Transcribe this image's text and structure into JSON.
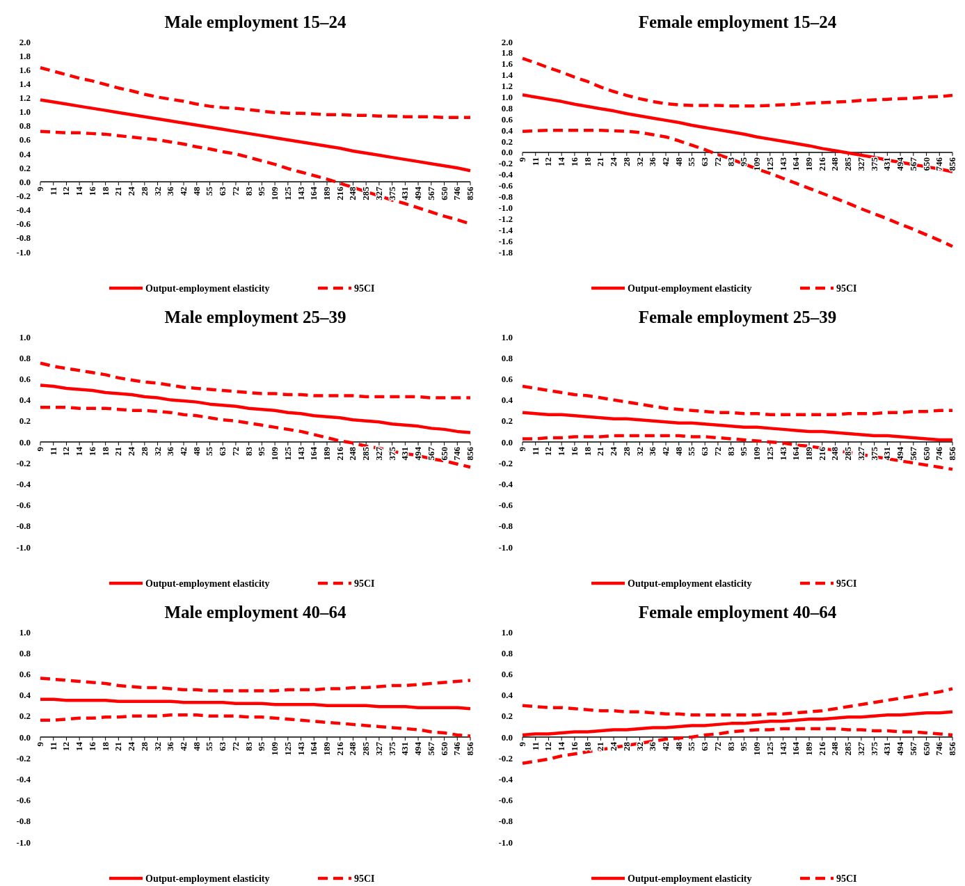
{
  "chart_data": [
    {
      "type": "line",
      "title": "Male employment 15–24",
      "legend": "bottom",
      "categories": [
        "9",
        "11",
        "12",
        "14",
        "16",
        "18",
        "21",
        "24",
        "28",
        "32",
        "36",
        "42",
        "48",
        "55",
        "63",
        "72",
        "83",
        "95",
        "109",
        "125",
        "143",
        "164",
        "189",
        "216",
        "248",
        "285",
        "327",
        "375",
        "431",
        "494",
        "567",
        "650",
        "746",
        "856"
      ],
      "ylim": [
        -1.0,
        2.0
      ],
      "yticks": [
        {
          "value": -1.0,
          "label": "-1.0"
        },
        {
          "value": -0.8,
          "label": "-0.8"
        },
        {
          "value": -0.6,
          "label": "-0.6"
        },
        {
          "value": -0.4,
          "label": "-0.4"
        },
        {
          "value": -0.2,
          "label": "-0.2"
        },
        {
          "value": 0,
          "label": "0.0"
        },
        {
          "value": 0.2,
          "label": "0.2"
        },
        {
          "value": 0.4,
          "label": "0.4"
        },
        {
          "value": 0.6,
          "label": "0.6"
        },
        {
          "value": 0.8,
          "label": "0.8"
        },
        {
          "value": 1.0,
          "label": "1.0"
        },
        {
          "value": 1.2,
          "label": "1.2"
        },
        {
          "value": 1.4,
          "label": "1.4"
        },
        {
          "value": 1.6,
          "label": "1.6"
        },
        {
          "value": 1.8,
          "label": "1.8"
        },
        {
          "value": 2.0,
          "label": "2.0"
        }
      ],
      "series": [
        {
          "name": "Output-employment elasticity",
          "color": "#ff0000",
          "line_style": "solid",
          "values": [
            1.17,
            1.14,
            1.11,
            1.08,
            1.05,
            1.02,
            0.99,
            0.96,
            0.93,
            0.9,
            0.87,
            0.84,
            0.81,
            0.78,
            0.75,
            0.72,
            0.69,
            0.66,
            0.63,
            0.6,
            0.57,
            0.54,
            0.51,
            0.48,
            0.44,
            0.41,
            0.38,
            0.35,
            0.32,
            0.29,
            0.26,
            0.23,
            0.2,
            0.16
          ]
        },
        {
          "name": "95CI",
          "color": "#ff0000",
          "line_style": "dashed",
          "values": [
            1.63,
            1.58,
            1.53,
            1.48,
            1.44,
            1.39,
            1.34,
            1.3,
            1.25,
            1.21,
            1.18,
            1.15,
            1.11,
            1.08,
            1.06,
            1.05,
            1.03,
            1.01,
            0.99,
            0.98,
            0.98,
            0.97,
            0.96,
            0.96,
            0.95,
            0.95,
            0.94,
            0.94,
            0.93,
            0.93,
            0.93,
            0.92,
            0.92,
            0.92
          ]
        },
        {
          "color": "#ff0000",
          "line_style": "dashed",
          "values": [
            0.72,
            0.71,
            0.7,
            0.7,
            0.69,
            0.68,
            0.66,
            0.64,
            0.62,
            0.6,
            0.57,
            0.54,
            0.5,
            0.47,
            0.43,
            0.4,
            0.35,
            0.3,
            0.25,
            0.19,
            0.14,
            0.09,
            0.04,
            -0.02,
            -0.08,
            -0.14,
            -0.2,
            -0.26,
            -0.31,
            -0.37,
            -0.43,
            -0.49,
            -0.54,
            -0.6
          ]
        }
      ]
    },
    {
      "type": "line",
      "title": "Female employment 15–24",
      "legend": "bottom",
      "categories": [
        "9",
        "11",
        "12",
        "14",
        "16",
        "18",
        "21",
        "24",
        "28",
        "32",
        "36",
        "42",
        "48",
        "55",
        "63",
        "72",
        "83",
        "95",
        "109",
        "125",
        "143",
        "164",
        "189",
        "216",
        "248",
        "285",
        "327",
        "375",
        "431",
        "494",
        "567",
        "650",
        "746",
        "856"
      ],
      "ylim": [
        -1.8,
        2.0
      ],
      "yticks": [
        {
          "value": -1.8,
          "label": "-1.8"
        },
        {
          "value": -1.6,
          "label": "-1.6"
        },
        {
          "value": -1.4,
          "label": "-1.4"
        },
        {
          "value": -1.2,
          "label": "-1.2"
        },
        {
          "value": -1.0,
          "label": "-1.0"
        },
        {
          "value": -0.8,
          "label": "-0.8"
        },
        {
          "value": -0.6,
          "label": "-0.6"
        },
        {
          "value": -0.4,
          "label": "-0.4"
        },
        {
          "value": -0.2,
          "label": "-0.2"
        },
        {
          "value": 0,
          "label": "0.0"
        },
        {
          "value": 0.2,
          "label": "0.2"
        },
        {
          "value": 0.4,
          "label": "0.4"
        },
        {
          "value": 0.6,
          "label": "0.6"
        },
        {
          "value": 0.8,
          "label": "0.8"
        },
        {
          "value": 1.0,
          "label": "1.0"
        },
        {
          "value": 1.2,
          "label": "1.2"
        },
        {
          "value": 1.4,
          "label": "1.4"
        },
        {
          "value": 1.6,
          "label": "1.6"
        },
        {
          "value": 1.8,
          "label": "1.8"
        },
        {
          "value": 2.0,
          "label": "2.0"
        }
      ],
      "series": [
        {
          "name": "Output-employment elasticity",
          "color": "#ff0000",
          "line_style": "solid",
          "values": [
            1.04,
            1.0,
            0.96,
            0.92,
            0.87,
            0.83,
            0.79,
            0.75,
            0.7,
            0.66,
            0.62,
            0.58,
            0.54,
            0.49,
            0.45,
            0.41,
            0.37,
            0.33,
            0.28,
            0.24,
            0.2,
            0.16,
            0.12,
            0.07,
            0.03,
            -0.01,
            -0.05,
            -0.09,
            -0.14,
            -0.18,
            -0.22,
            -0.26,
            -0.3,
            -0.35
          ]
        },
        {
          "name": "95CI",
          "color": "#ff0000",
          "line_style": "dashed",
          "values": [
            1.7,
            1.62,
            1.53,
            1.45,
            1.36,
            1.28,
            1.18,
            1.1,
            1.03,
            0.97,
            0.92,
            0.88,
            0.86,
            0.85,
            0.85,
            0.85,
            0.84,
            0.84,
            0.84,
            0.85,
            0.86,
            0.87,
            0.89,
            0.9,
            0.91,
            0.92,
            0.94,
            0.95,
            0.96,
            0.97,
            0.98,
            1.0,
            1.01,
            1.03
          ]
        },
        {
          "color": "#ff0000",
          "line_style": "dashed",
          "values": [
            0.38,
            0.39,
            0.4,
            0.4,
            0.4,
            0.4,
            0.4,
            0.39,
            0.38,
            0.36,
            0.32,
            0.28,
            0.21,
            0.13,
            0.05,
            -0.04,
            -0.12,
            -0.21,
            -0.3,
            -0.38,
            -0.47,
            -0.56,
            -0.65,
            -0.74,
            -0.83,
            -0.92,
            -1.02,
            -1.11,
            -1.2,
            -1.3,
            -1.39,
            -1.49,
            -1.59,
            -1.7
          ]
        }
      ]
    },
    {
      "type": "line",
      "title": "Male employment 25–39",
      "legend": "bottom",
      "categories": [
        "9",
        "11",
        "12",
        "14",
        "16",
        "18",
        "21",
        "24",
        "28",
        "32",
        "36",
        "42",
        "48",
        "55",
        "63",
        "72",
        "83",
        "95",
        "109",
        "125",
        "143",
        "164",
        "189",
        "216",
        "248",
        "285",
        "327",
        "375",
        "431",
        "494",
        "567",
        "650",
        "746",
        "856"
      ],
      "ylim": [
        -1.0,
        1.0
      ],
      "yticks": [
        {
          "value": -1.0,
          "label": "-1.0"
        },
        {
          "value": -0.8,
          "label": "-0.8"
        },
        {
          "value": -0.6,
          "label": "-0.6"
        },
        {
          "value": -0.4,
          "label": "-0.4"
        },
        {
          "value": -0.2,
          "label": "-0.2"
        },
        {
          "value": 0,
          "label": "0.0"
        },
        {
          "value": 0.2,
          "label": "0.2"
        },
        {
          "value": 0.4,
          "label": "0.4"
        },
        {
          "value": 0.6,
          "label": "0.6"
        },
        {
          "value": 0.8,
          "label": "0.8"
        },
        {
          "value": 1.0,
          "label": "1.0"
        }
      ],
      "series": [
        {
          "name": "Output-employment elasticity",
          "color": "#ff0000",
          "line_style": "solid",
          "values": [
            0.54,
            0.53,
            0.51,
            0.5,
            0.49,
            0.47,
            0.46,
            0.45,
            0.43,
            0.42,
            0.4,
            0.39,
            0.38,
            0.36,
            0.35,
            0.34,
            0.32,
            0.31,
            0.3,
            0.28,
            0.27,
            0.25,
            0.24,
            0.23,
            0.21,
            0.2,
            0.19,
            0.17,
            0.16,
            0.15,
            0.13,
            0.12,
            0.1,
            0.09
          ]
        },
        {
          "name": "95CI",
          "color": "#ff0000",
          "line_style": "dashed",
          "values": [
            0.75,
            0.72,
            0.7,
            0.68,
            0.66,
            0.64,
            0.61,
            0.59,
            0.57,
            0.56,
            0.54,
            0.52,
            0.51,
            0.5,
            0.49,
            0.48,
            0.47,
            0.46,
            0.46,
            0.45,
            0.45,
            0.44,
            0.44,
            0.44,
            0.44,
            0.43,
            0.43,
            0.43,
            0.43,
            0.43,
            0.42,
            0.42,
            0.42,
            0.42
          ]
        },
        {
          "color": "#ff0000",
          "line_style": "dashed",
          "values": [
            0.33,
            0.33,
            0.33,
            0.32,
            0.32,
            0.32,
            0.31,
            0.3,
            0.3,
            0.29,
            0.28,
            0.26,
            0.25,
            0.23,
            0.21,
            0.2,
            0.18,
            0.16,
            0.14,
            0.12,
            0.1,
            0.07,
            0.04,
            0.01,
            -0.01,
            -0.04,
            -0.06,
            -0.09,
            -0.11,
            -0.13,
            -0.16,
            -0.18,
            -0.21,
            -0.24
          ]
        }
      ]
    },
    {
      "type": "line",
      "title": "Female employment 25–39",
      "legend": "bottom",
      "categories": [
        "9",
        "11",
        "12",
        "14",
        "16",
        "18",
        "21",
        "24",
        "28",
        "32",
        "36",
        "42",
        "48",
        "55",
        "63",
        "72",
        "83",
        "95",
        "109",
        "125",
        "143",
        "164",
        "189",
        "216",
        "248",
        "285",
        "327",
        "375",
        "431",
        "494",
        "567",
        "650",
        "746",
        "856"
      ],
      "ylim": [
        -1.0,
        1.0
      ],
      "yticks": [
        {
          "value": -1.0,
          "label": "-1.0"
        },
        {
          "value": -0.8,
          "label": "-0.8"
        },
        {
          "value": -0.6,
          "label": "-0.6"
        },
        {
          "value": -0.4,
          "label": "-0.4"
        },
        {
          "value": -0.2,
          "label": "-0.2"
        },
        {
          "value": 0,
          "label": "0.0"
        },
        {
          "value": 0.2,
          "label": "0.2"
        },
        {
          "value": 0.4,
          "label": "0.4"
        },
        {
          "value": 0.6,
          "label": "0.6"
        },
        {
          "value": 0.8,
          "label": "0.8"
        },
        {
          "value": 1.0,
          "label": "1.0"
        }
      ],
      "series": [
        {
          "name": "Output-employment elasticity",
          "color": "#ff0000",
          "line_style": "solid",
          "values": [
            0.28,
            0.27,
            0.26,
            0.26,
            0.25,
            0.24,
            0.23,
            0.22,
            0.22,
            0.21,
            0.2,
            0.19,
            0.18,
            0.18,
            0.17,
            0.16,
            0.15,
            0.14,
            0.14,
            0.13,
            0.12,
            0.11,
            0.1,
            0.1,
            0.09,
            0.08,
            0.07,
            0.06,
            0.06,
            0.05,
            0.04,
            0.03,
            0.02,
            0.02
          ]
        },
        {
          "name": "95CI",
          "color": "#ff0000",
          "line_style": "dashed",
          "values": [
            0.53,
            0.51,
            0.49,
            0.47,
            0.45,
            0.44,
            0.42,
            0.4,
            0.38,
            0.36,
            0.34,
            0.32,
            0.31,
            0.3,
            0.29,
            0.28,
            0.28,
            0.27,
            0.27,
            0.26,
            0.26,
            0.26,
            0.26,
            0.26,
            0.26,
            0.27,
            0.27,
            0.27,
            0.28,
            0.28,
            0.29,
            0.29,
            0.3,
            0.3
          ]
        },
        {
          "color": "#ff0000",
          "line_style": "dashed",
          "values": [
            0.03,
            0.03,
            0.04,
            0.04,
            0.05,
            0.05,
            0.05,
            0.06,
            0.06,
            0.06,
            0.06,
            0.06,
            0.06,
            0.05,
            0.05,
            0.04,
            0.03,
            0.02,
            0.01,
            0.0,
            -0.01,
            -0.03,
            -0.04,
            -0.06,
            -0.08,
            -0.1,
            -0.12,
            -0.14,
            -0.16,
            -0.18,
            -0.2,
            -0.22,
            -0.24,
            -0.26
          ]
        }
      ]
    },
    {
      "type": "line",
      "title": "Male employment 40–64",
      "legend": "bottom",
      "categories": [
        "9",
        "11",
        "12",
        "14",
        "16",
        "18",
        "21",
        "24",
        "28",
        "32",
        "36",
        "42",
        "48",
        "55",
        "63",
        "72",
        "83",
        "95",
        "109",
        "125",
        "143",
        "164",
        "189",
        "216",
        "248",
        "285",
        "327",
        "375",
        "431",
        "494",
        "567",
        "650",
        "746",
        "856"
      ],
      "ylim": [
        -1.0,
        1.0
      ],
      "yticks": [
        {
          "value": -1.0,
          "label": "-1.0"
        },
        {
          "value": -0.8,
          "label": "-0.8"
        },
        {
          "value": -0.6,
          "label": "-0.6"
        },
        {
          "value": -0.4,
          "label": "-0.4"
        },
        {
          "value": -0.2,
          "label": "-0.2"
        },
        {
          "value": 0,
          "label": "0.0"
        },
        {
          "value": 0.2,
          "label": "0.2"
        },
        {
          "value": 0.4,
          "label": "0.4"
        },
        {
          "value": 0.6,
          "label": "0.6"
        },
        {
          "value": 0.8,
          "label": "0.8"
        },
        {
          "value": 1.0,
          "label": "1.0"
        }
      ],
      "series": [
        {
          "name": "Output-employment elasticity",
          "color": "#ff0000",
          "line_style": "solid",
          "values": [
            0.36,
            0.36,
            0.35,
            0.35,
            0.35,
            0.35,
            0.34,
            0.34,
            0.34,
            0.34,
            0.34,
            0.33,
            0.33,
            0.33,
            0.33,
            0.32,
            0.32,
            0.32,
            0.31,
            0.31,
            0.31,
            0.31,
            0.3,
            0.3,
            0.3,
            0.3,
            0.29,
            0.29,
            0.29,
            0.28,
            0.28,
            0.28,
            0.28,
            0.27
          ]
        },
        {
          "name": "95CI",
          "color": "#ff0000",
          "line_style": "dashed",
          "values": [
            0.56,
            0.55,
            0.54,
            0.53,
            0.52,
            0.51,
            0.49,
            0.48,
            0.47,
            0.47,
            0.46,
            0.45,
            0.45,
            0.44,
            0.44,
            0.44,
            0.44,
            0.44,
            0.44,
            0.45,
            0.45,
            0.45,
            0.46,
            0.46,
            0.47,
            0.47,
            0.48,
            0.49,
            0.49,
            0.5,
            0.51,
            0.52,
            0.53,
            0.54
          ]
        },
        {
          "color": "#ff0000",
          "line_style": "dashed",
          "values": [
            0.16,
            0.16,
            0.17,
            0.18,
            0.18,
            0.19,
            0.19,
            0.2,
            0.2,
            0.2,
            0.21,
            0.21,
            0.21,
            0.2,
            0.2,
            0.2,
            0.19,
            0.19,
            0.18,
            0.17,
            0.16,
            0.15,
            0.14,
            0.13,
            0.12,
            0.11,
            0.1,
            0.09,
            0.08,
            0.07,
            0.05,
            0.04,
            0.02,
            0.01
          ]
        }
      ]
    },
    {
      "type": "line",
      "title": "Female employment 40–64",
      "legend": "bottom",
      "categories": [
        "9",
        "11",
        "12",
        "14",
        "16",
        "18",
        "21",
        "24",
        "28",
        "32",
        "36",
        "42",
        "48",
        "55",
        "63",
        "72",
        "83",
        "95",
        "109",
        "125",
        "143",
        "164",
        "189",
        "216",
        "248",
        "285",
        "327",
        "375",
        "431",
        "494",
        "567",
        "650",
        "746",
        "856"
      ],
      "ylim": [
        -1.0,
        1.0
      ],
      "yticks": [
        {
          "value": -1.0,
          "label": "-1.0"
        },
        {
          "value": -0.8,
          "label": "-0.8"
        },
        {
          "value": -0.6,
          "label": "-0.6"
        },
        {
          "value": -0.4,
          "label": "-0.4"
        },
        {
          "value": -0.2,
          "label": "-0.2"
        },
        {
          "value": 0,
          "label": "0.0"
        },
        {
          "value": 0.2,
          "label": "0.2"
        },
        {
          "value": 0.4,
          "label": "0.4"
        },
        {
          "value": 0.6,
          "label": "0.6"
        },
        {
          "value": 0.8,
          "label": "0.8"
        },
        {
          "value": 1.0,
          "label": "1.0"
        }
      ],
      "series": [
        {
          "name": "Output-employment elasticity",
          "color": "#ff0000",
          "line_style": "solid",
          "values": [
            0.02,
            0.03,
            0.03,
            0.04,
            0.05,
            0.05,
            0.06,
            0.07,
            0.07,
            0.08,
            0.09,
            0.09,
            0.1,
            0.11,
            0.11,
            0.12,
            0.13,
            0.13,
            0.14,
            0.15,
            0.15,
            0.16,
            0.17,
            0.17,
            0.18,
            0.19,
            0.19,
            0.2,
            0.21,
            0.21,
            0.22,
            0.23,
            0.23,
            0.24
          ]
        },
        {
          "name": "95CI",
          "color": "#ff0000",
          "line_style": "dashed",
          "values": [
            0.3,
            0.29,
            0.28,
            0.28,
            0.27,
            0.26,
            0.25,
            0.25,
            0.24,
            0.24,
            0.23,
            0.22,
            0.22,
            0.21,
            0.21,
            0.21,
            0.21,
            0.21,
            0.21,
            0.22,
            0.22,
            0.23,
            0.24,
            0.25,
            0.27,
            0.29,
            0.31,
            0.33,
            0.35,
            0.37,
            0.39,
            0.41,
            0.43,
            0.46
          ]
        },
        {
          "color": "#ff0000",
          "line_style": "dashed",
          "values": [
            -0.25,
            -0.23,
            -0.21,
            -0.18,
            -0.16,
            -0.14,
            -0.12,
            -0.1,
            -0.08,
            -0.06,
            -0.04,
            -0.02,
            -0.01,
            0.0,
            0.02,
            0.03,
            0.05,
            0.06,
            0.07,
            0.07,
            0.08,
            0.08,
            0.08,
            0.08,
            0.08,
            0.07,
            0.07,
            0.06,
            0.06,
            0.05,
            0.05,
            0.04,
            0.03,
            0.02
          ]
        }
      ]
    }
  ]
}
